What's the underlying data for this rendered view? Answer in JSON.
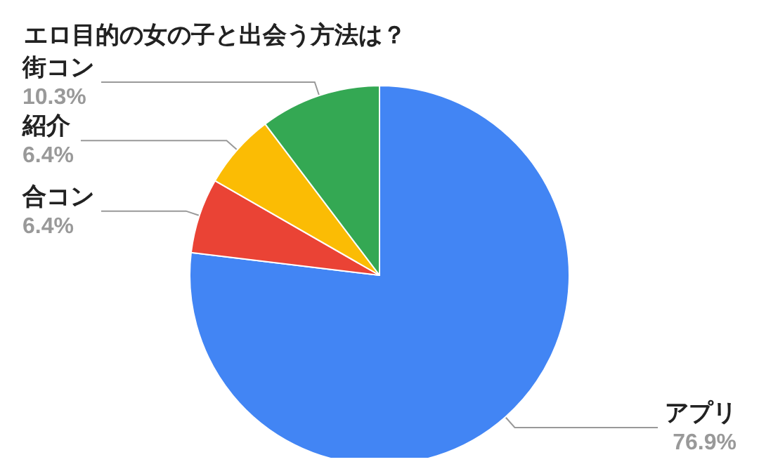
{
  "chart_data": {
    "type": "pie",
    "title": "エロ目的の女の子と出会う方法は？",
    "categories": [
      "アプリ",
      "合コン",
      "紹介",
      "街コン"
    ],
    "values": [
      76.9,
      6.4,
      6.4,
      10.3
    ],
    "colors": [
      "#4285f4",
      "#ea4335",
      "#fbbc04",
      "#34a853"
    ],
    "value_labels": [
      "76.9%",
      "6.4%",
      "6.4%",
      "10.3%"
    ],
    "legend": false
  }
}
